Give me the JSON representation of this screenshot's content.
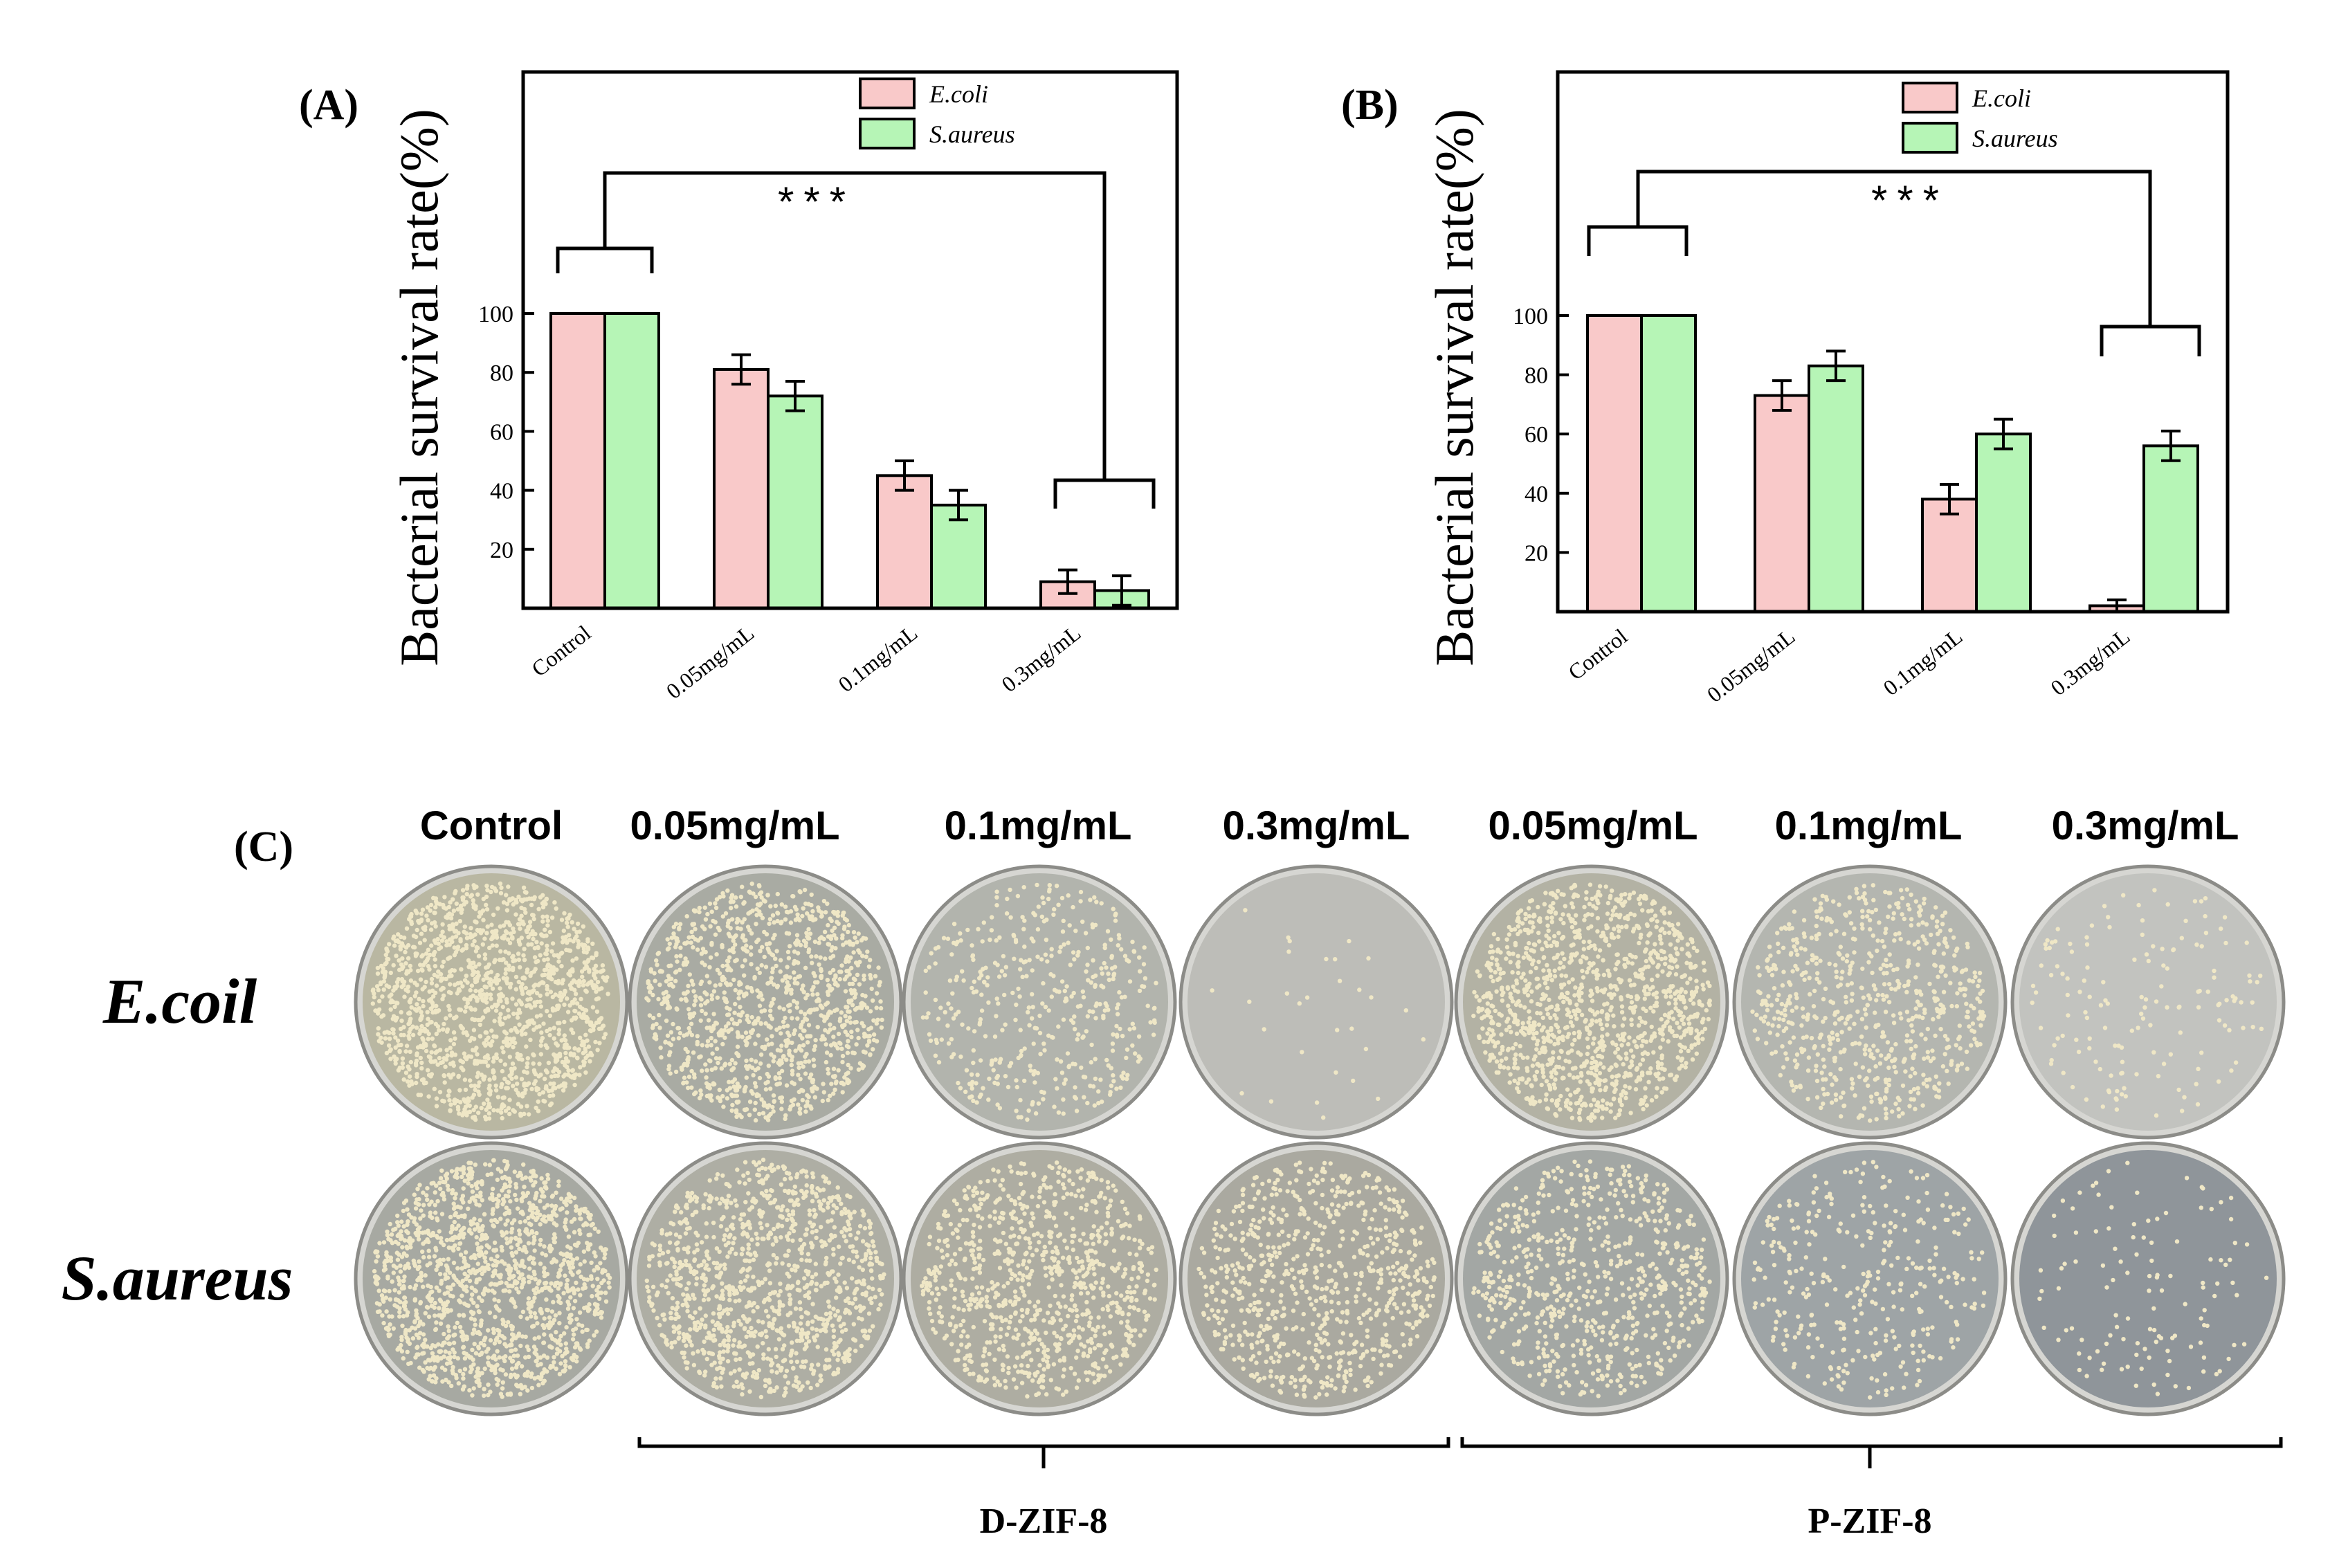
{
  "chart_data": [
    {
      "type": "bar",
      "panel_label": "(A)",
      "ylabel": "Bacterial survival rate(%)",
      "categories": [
        "Control",
        "0.05mg/mL",
        "0.1mg/mL",
        "0.3mg/mL"
      ],
      "yticks": [
        20,
        40,
        60,
        80,
        100
      ],
      "ylim": [
        0,
        200
      ],
      "series": [
        {
          "name": "E.coli",
          "color": "#f9c9c9",
          "values": [
            100,
            81,
            45,
            9
          ],
          "errors": [
            0,
            5,
            5,
            4
          ]
        },
        {
          "name": "S.aureus",
          "color": "#b6f5b6",
          "values": [
            100,
            72,
            35,
            6
          ],
          "errors": [
            0,
            5,
            5,
            5
          ]
        }
      ],
      "significance": "***",
      "legend": "top-right",
      "grid": false
    },
    {
      "type": "bar",
      "panel_label": "(B)",
      "ylabel": "Bacterial survival rate(%)",
      "categories": [
        "Control",
        "0.05mg/mL",
        "0.1mg/mL",
        "0.3mg/mL"
      ],
      "yticks": [
        20,
        40,
        60,
        80,
        100
      ],
      "ylim": [
        0,
        200
      ],
      "series": [
        {
          "name": "E.coli",
          "color": "#f9c9c9",
          "values": [
            100,
            73,
            38,
            2
          ],
          "errors": [
            0,
            5,
            5,
            2
          ]
        },
        {
          "name": "S.aureus",
          "color": "#b6f5b6",
          "values": [
            100,
            83,
            60,
            56
          ],
          "errors": [
            0,
            5,
            5,
            5
          ]
        }
      ],
      "significance": "***",
      "legend": "top-right",
      "grid": false
    }
  ],
  "photo_panel": {
    "panel_label": "(C)",
    "column_headers": [
      "Control",
      "0.05mg/mL",
      "0.1mg/mL",
      "0.3mg/mL",
      "0.05mg/mL",
      "0.1mg/mL",
      "0.3mg/mL"
    ],
    "row_headers": [
      "E.coil",
      "S.aureus"
    ],
    "group_labels": [
      "D-ZIF-8",
      "P-ZIF-8"
    ],
    "colony_density": {
      "E.coil": [
        1.0,
        0.78,
        0.3,
        0.02,
        0.85,
        0.45,
        0.1
      ],
      "S.aureus": [
        1.0,
        0.75,
        0.6,
        0.5,
        0.45,
        0.22,
        0.08
      ]
    },
    "dish_colors": {
      "E.coil": [
        "#b9b7a2",
        "#a9aba3",
        "#b2b4ad",
        "#bdbdb8",
        "#b3b2a4",
        "#b4b6b0",
        "#c2c3bf"
      ],
      "S.aureus": [
        "#a7a9a2",
        "#aeaea4",
        "#aeada2",
        "#aaa9a0",
        "#a3a7a4",
        "#9ea4a6",
        "#8f959a"
      ]
    },
    "colony_color": "#efe7c6"
  }
}
